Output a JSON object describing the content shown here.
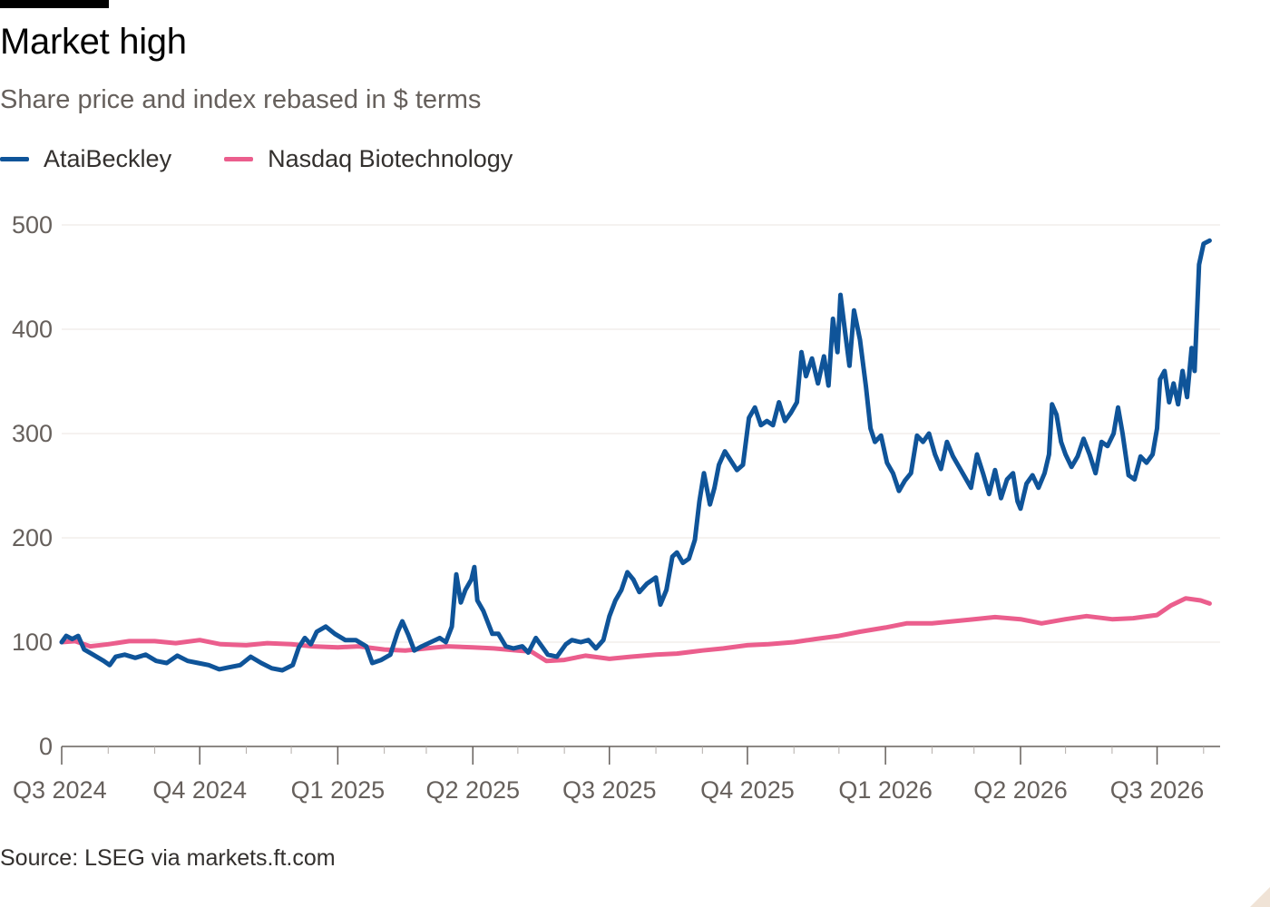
{
  "header": {
    "title": "Market high",
    "subtitle": "Share price and index rebased in $ terms"
  },
  "footer": {
    "source": "Source: LSEG via markets.ft.com"
  },
  "chart_data": {
    "type": "line",
    "title": "Market high",
    "subtitle": "Share price and index rebased in $ terms",
    "xlabel": "",
    "ylabel": "",
    "ylim": [
      0,
      500
    ],
    "xlim": [
      "2024-07-01",
      "2026-08-12"
    ],
    "yticks": [
      0,
      100,
      200,
      300,
      400,
      500
    ],
    "xticks": [
      {
        "label": "Q3 2024",
        "date": "2024-07-01"
      },
      {
        "label": "Q4 2024",
        "date": "2024-10-01"
      },
      {
        "label": "Q1 2025",
        "date": "2025-01-01"
      },
      {
        "label": "Q2 2025",
        "date": "2025-04-01"
      },
      {
        "label": "Q3 2025",
        "date": "2025-07-01"
      },
      {
        "label": "Q4 2025",
        "date": "2025-10-01"
      },
      {
        "label": "Q1 2026",
        "date": "2026-01-01"
      },
      {
        "label": "Q2 2026",
        "date": "2026-04-01"
      },
      {
        "label": "Q3 2026",
        "date": "2026-07-01"
      }
    ],
    "grid": true,
    "legend_position": "top-left",
    "series": [
      {
        "name": "AtaiBeckley",
        "color": "#0f5499",
        "points": [
          [
            "2024-07-01",
            100
          ],
          [
            "2024-07-04",
            106
          ],
          [
            "2024-07-08",
            103
          ],
          [
            "2024-07-12",
            106
          ],
          [
            "2024-07-16",
            93
          ],
          [
            "2024-07-22",
            88
          ],
          [
            "2024-07-29",
            82
          ],
          [
            "2024-08-02",
            78
          ],
          [
            "2024-08-06",
            86
          ],
          [
            "2024-08-12",
            88
          ],
          [
            "2024-08-19",
            85
          ],
          [
            "2024-08-26",
            88
          ],
          [
            "2024-09-02",
            82
          ],
          [
            "2024-09-09",
            80
          ],
          [
            "2024-09-16",
            87
          ],
          [
            "2024-09-23",
            82
          ],
          [
            "2024-09-30",
            80
          ],
          [
            "2024-10-07",
            78
          ],
          [
            "2024-10-14",
            74
          ],
          [
            "2024-10-21",
            76
          ],
          [
            "2024-10-28",
            78
          ],
          [
            "2024-11-04",
            86
          ],
          [
            "2024-11-11",
            80
          ],
          [
            "2024-11-18",
            75
          ],
          [
            "2024-11-25",
            73
          ],
          [
            "2024-12-02",
            78
          ],
          [
            "2024-12-06",
            95
          ],
          [
            "2024-12-10",
            104
          ],
          [
            "2024-12-14",
            98
          ],
          [
            "2024-12-18",
            110
          ],
          [
            "2024-12-24",
            115
          ],
          [
            "2024-12-30",
            108
          ],
          [
            "2025-01-06",
            102
          ],
          [
            "2025-01-13",
            102
          ],
          [
            "2025-01-20",
            96
          ],
          [
            "2025-01-24",
            80
          ],
          [
            "2025-01-30",
            83
          ],
          [
            "2025-02-05",
            88
          ],
          [
            "2025-02-10",
            110
          ],
          [
            "2025-02-13",
            120
          ],
          [
            "2025-02-17",
            107
          ],
          [
            "2025-02-21",
            92
          ],
          [
            "2025-02-26",
            96
          ],
          [
            "2025-03-04",
            100
          ],
          [
            "2025-03-10",
            104
          ],
          [
            "2025-03-14",
            100
          ],
          [
            "2025-03-18",
            115
          ],
          [
            "2025-03-21",
            165
          ],
          [
            "2025-03-24",
            138
          ],
          [
            "2025-03-27",
            150
          ],
          [
            "2025-03-31",
            160
          ],
          [
            "2025-04-02",
            172
          ],
          [
            "2025-04-04",
            140
          ],
          [
            "2025-04-08",
            130
          ],
          [
            "2025-04-14",
            108
          ],
          [
            "2025-04-18",
            108
          ],
          [
            "2025-04-23",
            96
          ],
          [
            "2025-04-28",
            94
          ],
          [
            "2025-05-04",
            96
          ],
          [
            "2025-05-08",
            90
          ],
          [
            "2025-05-13",
            104
          ],
          [
            "2025-05-17",
            96
          ],
          [
            "2025-05-21",
            88
          ],
          [
            "2025-05-27",
            86
          ],
          [
            "2025-06-02",
            98
          ],
          [
            "2025-06-06",
            102
          ],
          [
            "2025-06-12",
            100
          ],
          [
            "2025-06-17",
            102
          ],
          [
            "2025-06-22",
            94
          ],
          [
            "2025-06-27",
            102
          ],
          [
            "2025-07-01",
            125
          ],
          [
            "2025-07-05",
            140
          ],
          [
            "2025-07-09",
            150
          ],
          [
            "2025-07-13",
            167
          ],
          [
            "2025-07-17",
            160
          ],
          [
            "2025-07-21",
            148
          ],
          [
            "2025-07-26",
            156
          ],
          [
            "2025-08-01",
            162
          ],
          [
            "2025-08-04",
            136
          ],
          [
            "2025-08-08",
            150
          ],
          [
            "2025-08-12",
            182
          ],
          [
            "2025-08-15",
            186
          ],
          [
            "2025-08-19",
            176
          ],
          [
            "2025-08-23",
            180
          ],
          [
            "2025-08-27",
            198
          ],
          [
            "2025-08-30",
            235
          ],
          [
            "2025-09-02",
            262
          ],
          [
            "2025-09-06",
            232
          ],
          [
            "2025-09-09",
            248
          ],
          [
            "2025-09-12",
            270
          ],
          [
            "2025-09-16",
            283
          ],
          [
            "2025-09-20",
            274
          ],
          [
            "2025-09-24",
            265
          ],
          [
            "2025-09-28",
            270
          ],
          [
            "2025-10-02",
            315
          ],
          [
            "2025-10-06",
            325
          ],
          [
            "2025-10-10",
            308
          ],
          [
            "2025-10-14",
            312
          ],
          [
            "2025-10-18",
            308
          ],
          [
            "2025-10-22",
            330
          ],
          [
            "2025-10-26",
            312
          ],
          [
            "2025-10-30",
            320
          ],
          [
            "2025-11-03",
            330
          ],
          [
            "2025-11-06",
            378
          ],
          [
            "2025-11-09",
            355
          ],
          [
            "2025-11-13",
            372
          ],
          [
            "2025-11-17",
            348
          ],
          [
            "2025-11-21",
            374
          ],
          [
            "2025-11-24",
            346
          ],
          [
            "2025-11-27",
            410
          ],
          [
            "2025-11-30",
            378
          ],
          [
            "2025-12-02",
            433
          ],
          [
            "2025-12-05",
            398
          ],
          [
            "2025-12-08",
            365
          ],
          [
            "2025-12-11",
            418
          ],
          [
            "2025-12-15",
            390
          ],
          [
            "2025-12-19",
            345
          ],
          [
            "2025-12-22",
            305
          ],
          [
            "2025-12-25",
            292
          ],
          [
            "2025-12-29",
            298
          ],
          [
            "2026-01-02",
            272
          ],
          [
            "2026-01-06",
            262
          ],
          [
            "2026-01-10",
            245
          ],
          [
            "2026-01-14",
            255
          ],
          [
            "2026-01-18",
            262
          ],
          [
            "2026-01-22",
            298
          ],
          [
            "2026-01-26",
            292
          ],
          [
            "2026-01-30",
            300
          ],
          [
            "2026-02-03",
            280
          ],
          [
            "2026-02-07",
            266
          ],
          [
            "2026-02-11",
            292
          ],
          [
            "2026-02-15",
            278
          ],
          [
            "2026-02-19",
            268
          ],
          [
            "2026-02-23",
            258
          ],
          [
            "2026-02-27",
            248
          ],
          [
            "2026-03-03",
            280
          ],
          [
            "2026-03-07",
            262
          ],
          [
            "2026-03-11",
            242
          ],
          [
            "2026-03-15",
            265
          ],
          [
            "2026-03-19",
            238
          ],
          [
            "2026-03-23",
            256
          ],
          [
            "2026-03-27",
            262
          ],
          [
            "2026-03-30",
            235
          ],
          [
            "2026-04-01",
            228
          ],
          [
            "2026-04-05",
            252
          ],
          [
            "2026-04-09",
            260
          ],
          [
            "2026-04-13",
            248
          ],
          [
            "2026-04-17",
            262
          ],
          [
            "2026-04-20",
            280
          ],
          [
            "2026-04-22",
            328
          ],
          [
            "2026-04-25",
            318
          ],
          [
            "2026-04-28",
            292
          ],
          [
            "2026-05-01",
            280
          ],
          [
            "2026-05-05",
            268
          ],
          [
            "2026-05-09",
            278
          ],
          [
            "2026-05-13",
            295
          ],
          [
            "2026-05-17",
            280
          ],
          [
            "2026-05-21",
            262
          ],
          [
            "2026-05-25",
            292
          ],
          [
            "2026-05-29",
            288
          ],
          [
            "2026-06-02",
            300
          ],
          [
            "2026-06-05",
            325
          ],
          [
            "2026-06-08",
            300
          ],
          [
            "2026-06-12",
            260
          ],
          [
            "2026-06-16",
            256
          ],
          [
            "2026-06-20",
            278
          ],
          [
            "2026-06-24",
            272
          ],
          [
            "2026-06-28",
            280
          ],
          [
            "2026-07-01",
            305
          ],
          [
            "2026-07-03",
            352
          ],
          [
            "2026-07-06",
            360
          ],
          [
            "2026-07-09",
            330
          ],
          [
            "2026-07-12",
            348
          ],
          [
            "2026-07-15",
            328
          ],
          [
            "2026-07-18",
            360
          ],
          [
            "2026-07-21",
            335
          ],
          [
            "2026-07-24",
            382
          ],
          [
            "2026-07-26",
            360
          ],
          [
            "2026-07-29",
            462
          ],
          [
            "2026-08-01",
            482
          ],
          [
            "2026-08-05",
            485
          ]
        ]
      },
      {
        "name": "Nasdaq Biotechnology",
        "color": "#eb5e8d",
        "points": [
          [
            "2024-07-01",
            100
          ],
          [
            "2024-07-10",
            101
          ],
          [
            "2024-07-20",
            96
          ],
          [
            "2024-08-01",
            98
          ],
          [
            "2024-08-15",
            101
          ],
          [
            "2024-09-01",
            101
          ],
          [
            "2024-09-15",
            99
          ],
          [
            "2024-10-01",
            102
          ],
          [
            "2024-10-15",
            98
          ],
          [
            "2024-11-01",
            97
          ],
          [
            "2024-11-15",
            99
          ],
          [
            "2024-12-01",
            98
          ],
          [
            "2024-12-15",
            96
          ],
          [
            "2025-01-01",
            95
          ],
          [
            "2025-01-15",
            96
          ],
          [
            "2025-02-01",
            93
          ],
          [
            "2025-02-15",
            92
          ],
          [
            "2025-03-01",
            94
          ],
          [
            "2025-03-15",
            96
          ],
          [
            "2025-04-01",
            95
          ],
          [
            "2025-04-15",
            94
          ],
          [
            "2025-05-01",
            92
          ],
          [
            "2025-05-10",
            91
          ],
          [
            "2025-05-20",
            82
          ],
          [
            "2025-06-01",
            83
          ],
          [
            "2025-06-15",
            87
          ],
          [
            "2025-07-01",
            84
          ],
          [
            "2025-07-15",
            86
          ],
          [
            "2025-08-01",
            88
          ],
          [
            "2025-08-15",
            89
          ],
          [
            "2025-09-01",
            92
          ],
          [
            "2025-09-15",
            94
          ],
          [
            "2025-10-01",
            97
          ],
          [
            "2025-10-15",
            98
          ],
          [
            "2025-11-01",
            100
          ],
          [
            "2025-11-15",
            103
          ],
          [
            "2025-12-01",
            106
          ],
          [
            "2025-12-15",
            110
          ],
          [
            "2026-01-01",
            114
          ],
          [
            "2026-01-15",
            118
          ],
          [
            "2026-02-01",
            118
          ],
          [
            "2026-02-15",
            120
          ],
          [
            "2026-03-01",
            122
          ],
          [
            "2026-03-15",
            124
          ],
          [
            "2026-04-01",
            122
          ],
          [
            "2026-04-15",
            118
          ],
          [
            "2026-05-01",
            122
          ],
          [
            "2026-05-15",
            125
          ],
          [
            "2026-06-01",
            122
          ],
          [
            "2026-06-15",
            123
          ],
          [
            "2026-07-01",
            126
          ],
          [
            "2026-07-10",
            135
          ],
          [
            "2026-07-20",
            142
          ],
          [
            "2026-07-30",
            140
          ],
          [
            "2026-08-05",
            137
          ]
        ]
      }
    ]
  }
}
